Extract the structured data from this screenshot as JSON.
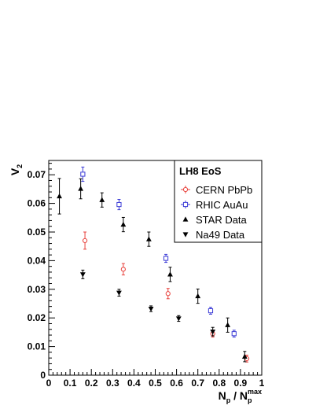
{
  "chart_data": {
    "type": "scatter",
    "xlabel": {
      "main": "N",
      "sub": "p",
      "sep": " / N",
      "sup": "max",
      "sub2": "p"
    },
    "ylabel": {
      "main": "V",
      "sub": "2"
    },
    "xlim": [
      0,
      1
    ],
    "ylim": [
      0,
      0.075
    ],
    "x_ticks": [
      0,
      0.1,
      0.2,
      0.3,
      0.4,
      0.5,
      0.6,
      0.7,
      0.8,
      0.9,
      1
    ],
    "x_tick_labels": [
      "0",
      "0.1",
      "0.2",
      "0.3",
      "0.4",
      "0.5",
      "0.6",
      "0.7",
      "0.8",
      "0.9",
      "1"
    ],
    "y_ticks": [
      0,
      0.01,
      0.02,
      0.03,
      0.04,
      0.05,
      0.06,
      0.07
    ],
    "y_tick_labels": [
      "0",
      "0.01",
      "0.02",
      "0.03",
      "0.04",
      "0.05",
      "0.06",
      "0.07"
    ],
    "legend": {
      "title": "LH8 EoS",
      "placement": "top-right"
    },
    "series": [
      {
        "name": "CERN PbPb",
        "marker": "open-circle",
        "color": "#e8413c",
        "points": [
          {
            "x": 0.17,
            "y": 0.047,
            "err": 0.003
          },
          {
            "x": 0.35,
            "y": 0.037,
            "err": 0.002
          },
          {
            "x": 0.56,
            "y": 0.0285,
            "err": 0.0018
          },
          {
            "x": 0.77,
            "y": 0.0145,
            "err": 0.0012
          },
          {
            "x": 0.93,
            "y": 0.0058,
            "err": 0.0012
          }
        ]
      },
      {
        "name": "RHIC AuAu",
        "marker": "open-square",
        "color": "#3b3bd6",
        "points": [
          {
            "x": 0.16,
            "y": 0.0702,
            "err": 0.0025
          },
          {
            "x": 0.33,
            "y": 0.0596,
            "err": 0.0018
          },
          {
            "x": 0.55,
            "y": 0.0408,
            "err": 0.0014
          },
          {
            "x": 0.76,
            "y": 0.0225,
            "err": 0.0012
          },
          {
            "x": 0.87,
            "y": 0.0145,
            "err": 0.0012
          }
        ]
      },
      {
        "name": "STAR Data",
        "marker": "up-triangle",
        "color": "#000000",
        "points": [
          {
            "x": 0.05,
            "y": 0.0625,
            "err": 0.0062
          },
          {
            "x": 0.15,
            "y": 0.0651,
            "err": 0.0035
          },
          {
            "x": 0.25,
            "y": 0.0612,
            "err": 0.0025
          },
          {
            "x": 0.35,
            "y": 0.0526,
            "err": 0.0025
          },
          {
            "x": 0.47,
            "y": 0.0475,
            "err": 0.0025
          },
          {
            "x": 0.57,
            "y": 0.0352,
            "err": 0.0025
          },
          {
            "x": 0.7,
            "y": 0.0276,
            "err": 0.0025
          },
          {
            "x": 0.84,
            "y": 0.0175,
            "err": 0.0025
          },
          {
            "x": 0.92,
            "y": 0.0065,
            "err": 0.0018
          }
        ]
      },
      {
        "name": "Na49 Data",
        "marker": "down-triangle",
        "color": "#000000",
        "points": [
          {
            "x": 0.16,
            "y": 0.0352,
            "err": 0.0015
          },
          {
            "x": 0.33,
            "y": 0.0288,
            "err": 0.0012
          },
          {
            "x": 0.48,
            "y": 0.0232,
            "err": 0.001
          },
          {
            "x": 0.61,
            "y": 0.0198,
            "err": 0.001
          },
          {
            "x": 0.77,
            "y": 0.0152,
            "err": 0.0015
          }
        ]
      }
    ]
  }
}
